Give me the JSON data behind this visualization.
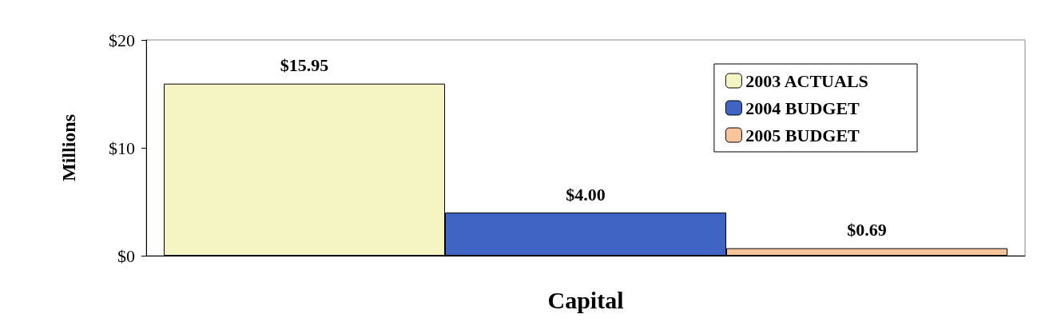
{
  "chart_data": {
    "type": "bar",
    "ylabel": "Millions",
    "categories": [
      "Capital"
    ],
    "series": [
      {
        "name": "2003 ACTUALS",
        "color": "#f5f5c4",
        "values": [
          15.95
        ],
        "value_labels": [
          "$15.95"
        ]
      },
      {
        "name": "2004 BUDGET",
        "color": "#4064c4",
        "values": [
          4.0
        ],
        "value_labels": [
          "$4.00"
        ]
      },
      {
        "name": "2005 BUDGET",
        "color": "#f7c49c",
        "values": [
          0.69
        ],
        "value_labels": [
          "$0.69"
        ]
      }
    ],
    "ylim": [
      0,
      20
    ],
    "yticks": [
      {
        "value": 0,
        "label": "$0"
      },
      {
        "value": 10,
        "label": "$10"
      },
      {
        "value": 20,
        "label": "$20"
      }
    ],
    "grid": false,
    "legend": "top right"
  }
}
